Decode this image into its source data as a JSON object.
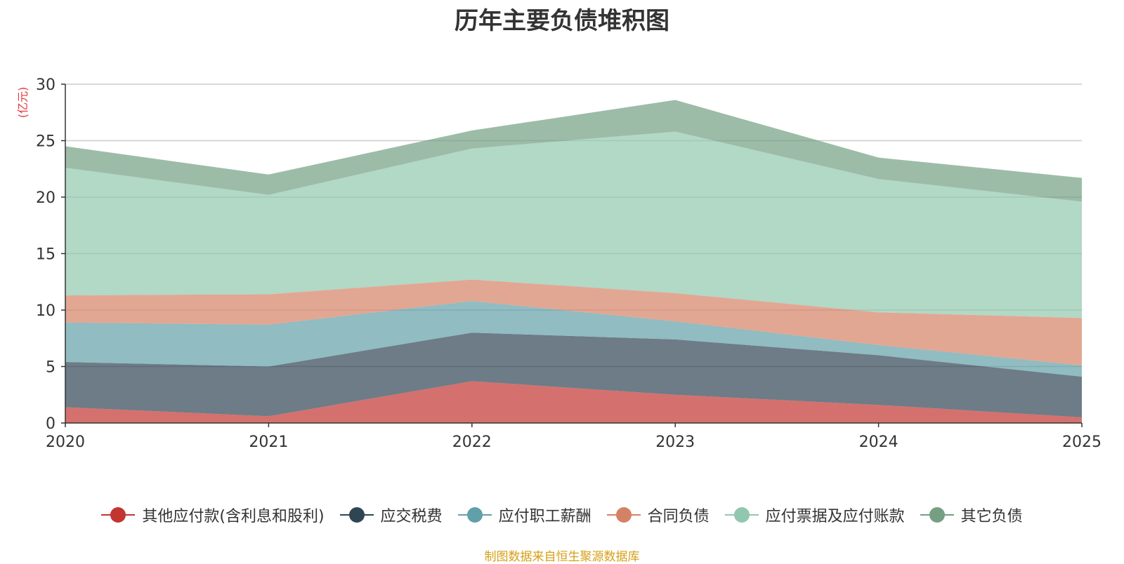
{
  "chart_data": {
    "type": "area",
    "stacked": true,
    "title": "历年主要负债堆积图",
    "ylabel": "(亿元)",
    "ylim": [
      0,
      30
    ],
    "yticks": [
      "0",
      "5",
      "10",
      "15",
      "20",
      "25",
      "30"
    ],
    "categories": [
      "2020",
      "2021",
      "2022",
      "2023",
      "2024",
      "2025"
    ],
    "grid": true,
    "legend_position": "bottom",
    "series": [
      {
        "name": "其他应付款(含利息和股利)",
        "color": "#c23531",
        "values": [
          1.4,
          0.6,
          3.7,
          2.5,
          1.6,
          0.5
        ]
      },
      {
        "name": "应交税费",
        "color": "#2f4554",
        "values": [
          4.0,
          4.4,
          4.3,
          4.9,
          4.4,
          3.6
        ]
      },
      {
        "name": "应付职工薪酬",
        "color": "#61a0a8",
        "values": [
          3.5,
          3.7,
          2.8,
          1.6,
          0.9,
          1.0
        ]
      },
      {
        "name": "合同负债",
        "color": "#d48265",
        "values": [
          2.4,
          2.7,
          1.9,
          2.5,
          2.9,
          4.2
        ]
      },
      {
        "name": "应付票据及应付账款",
        "color": "#91c7ae",
        "values": [
          11.3,
          8.8,
          11.6,
          14.3,
          11.8,
          10.3
        ]
      },
      {
        "name": "其它负债",
        "color": "#749f83",
        "values": [
          1.9,
          1.8,
          1.6,
          2.8,
          1.9,
          2.1
        ]
      }
    ]
  },
  "source": "制图数据来自恒生聚源数据库"
}
